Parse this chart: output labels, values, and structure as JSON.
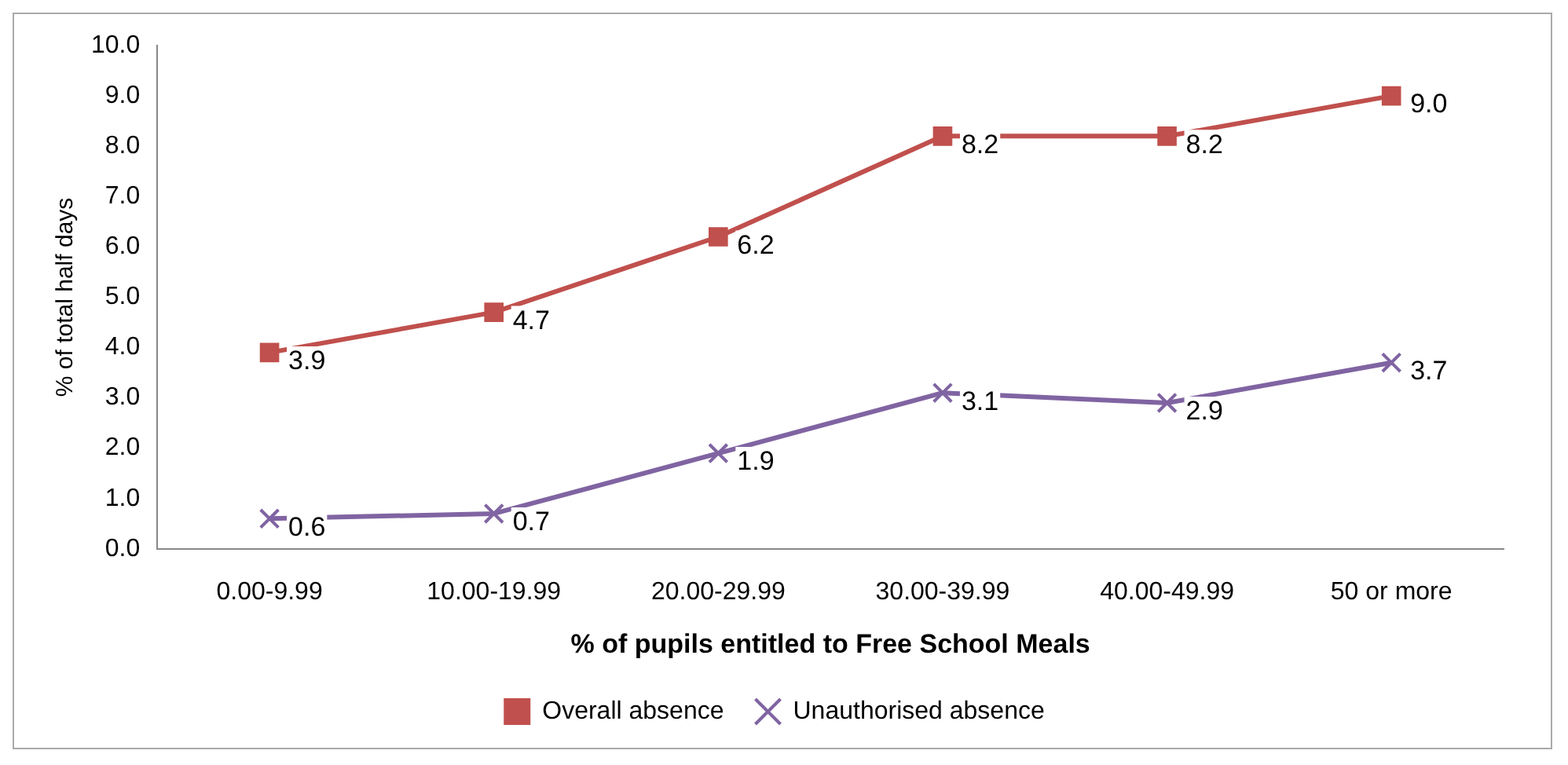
{
  "chart_data": {
    "type": "line",
    "xlabel": "% of pupils entitled to Free School Meals",
    "ylabel": "% of total half days",
    "categories": [
      "0.00-9.99",
      "10.00-19.99",
      "20.00-29.99",
      "30.00-39.99",
      "40.00-49.99",
      "50 or more"
    ],
    "series": [
      {
        "name": "Overall absence",
        "color": "#c0504d",
        "marker": "square",
        "values": [
          3.9,
          4.7,
          6.2,
          8.2,
          8.2,
          9.0
        ],
        "value_labels": [
          "3.9",
          "4.7",
          "6.2",
          "8.2",
          "8.2",
          "9.0"
        ]
      },
      {
        "name": "Unauthorised absence",
        "color": "#8064a2",
        "marker": "cross",
        "values": [
          0.6,
          0.7,
          1.9,
          3.1,
          2.9,
          3.7
        ],
        "value_labels": [
          "0.6",
          "0.7",
          "1.9",
          "3.1",
          "2.9",
          "3.7"
        ]
      }
    ],
    "ylim": [
      0,
      10
    ],
    "yticks": [
      {
        "value": 0,
        "label": "0.0"
      },
      {
        "value": 1,
        "label": "1.0"
      },
      {
        "value": 2,
        "label": "2.0"
      },
      {
        "value": 3,
        "label": "3.0"
      },
      {
        "value": 4,
        "label": "4.0"
      },
      {
        "value": 5,
        "label": "5.0"
      },
      {
        "value": 6,
        "label": "6.0"
      },
      {
        "value": 7,
        "label": "7.0"
      },
      {
        "value": 8,
        "label": "8.0"
      },
      {
        "value": 9,
        "label": "9.0"
      },
      {
        "value": 10,
        "label": "10.0"
      }
    ],
    "grid": false,
    "legend": "bottom",
    "line_style": "solid"
  }
}
